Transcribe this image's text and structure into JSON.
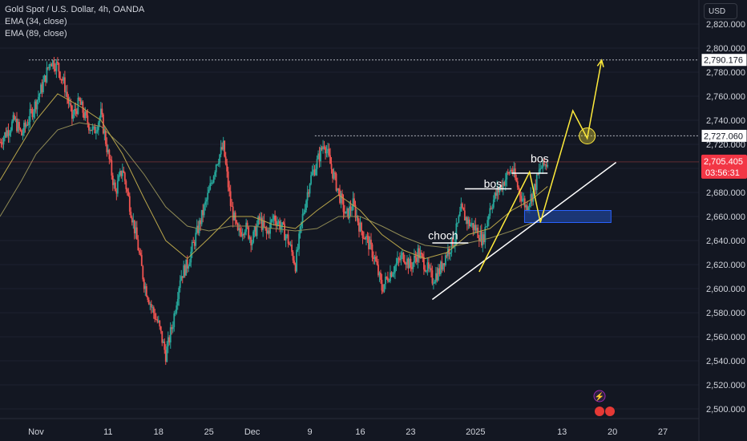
{
  "legend": {
    "symbol": "Gold Spot / U.S. Dollar, 4h, OANDA",
    "ema34": "EMA (34, close)",
    "ema89": "EMA (89, close)"
  },
  "currency_label": "USD",
  "colors": {
    "background": "#131722",
    "up": "#26a69a",
    "down": "#ef5350",
    "ema34": "#b8a54a",
    "ema89": "#8f8a55",
    "drawing": "#ffeb3b",
    "trendline": "#ffffff",
    "zone": "#1e3f8a"
  },
  "chart_data": {
    "type": "candlestick",
    "y_ticks": [
      2500,
      2520,
      2540,
      2560,
      2580,
      2600,
      2620,
      2640,
      2660,
      2680,
      2700,
      2720,
      2740,
      2760,
      2780,
      2800,
      2820
    ],
    "y_tick_labels": [
      "2,500.000",
      "2,520.000",
      "2,540.000",
      "2,560.000",
      "2,580.000",
      "2,600.000",
      "2,620.000",
      "2,640.000",
      "2,660.000",
      "2,680.000",
      "2,700.000",
      "2,720.000",
      "2,740.000",
      "2,760.000",
      "2,780.000",
      "2,800.000",
      "2,820.000"
    ],
    "x_tick_labels": [
      "Nov",
      "11",
      "18",
      "25",
      "Dec",
      "9",
      "16",
      "23",
      "2025",
      "13",
      "20",
      "27"
    ],
    "x_tick_days": [
      0,
      10,
      17,
      24,
      30,
      38,
      45,
      52,
      61,
      73,
      80,
      87
    ],
    "ylim": [
      2492,
      2840
    ],
    "xlim_days": [
      -5,
      92
    ],
    "price_path": [
      [
        -5,
        2722
      ],
      [
        -3,
        2740
      ],
      [
        -2,
        2728
      ],
      [
        0,
        2755
      ],
      [
        1,
        2770
      ],
      [
        2,
        2790
      ],
      [
        3,
        2785
      ],
      [
        4,
        2768
      ],
      [
        5,
        2742
      ],
      [
        6,
        2755
      ],
      [
        7,
        2740
      ],
      [
        8,
        2730
      ],
      [
        9,
        2745
      ],
      [
        10,
        2712
      ],
      [
        11,
        2680
      ],
      [
        12,
        2700
      ],
      [
        13,
        2670
      ],
      [
        14,
        2640
      ],
      [
        15,
        2605
      ],
      [
        16,
        2585
      ],
      [
        17,
        2570
      ],
      [
        18,
        2545
      ],
      [
        19,
        2572
      ],
      [
        20,
        2610
      ],
      [
        21,
        2620
      ],
      [
        22,
        2640
      ],
      [
        23,
        2660
      ],
      [
        24,
        2680
      ],
      [
        25,
        2705
      ],
      [
        26,
        2718
      ],
      [
        27,
        2670
      ],
      [
        28,
        2645
      ],
      [
        29,
        2652
      ],
      [
        30,
        2640
      ],
      [
        31,
        2658
      ],
      [
        32,
        2645
      ],
      [
        33,
        2660
      ],
      [
        34,
        2652
      ],
      [
        35,
        2640
      ],
      [
        36,
        2620
      ],
      [
        37,
        2660
      ],
      [
        38,
        2690
      ],
      [
        39,
        2705
      ],
      [
        40,
        2722
      ],
      [
        41,
        2700
      ],
      [
        42,
        2680
      ],
      [
        43,
        2660
      ],
      [
        44,
        2670
      ],
      [
        45,
        2650
      ],
      [
        46,
        2640
      ],
      [
        47,
        2625
      ],
      [
        48,
        2600
      ],
      [
        49,
        2612
      ],
      [
        50,
        2620
      ],
      [
        51,
        2628
      ],
      [
        52,
        2618
      ],
      [
        53,
        2630
      ],
      [
        54,
        2620
      ],
      [
        55,
        2608
      ],
      [
        56,
        2615
      ],
      [
        57,
        2630
      ],
      [
        58,
        2640
      ],
      [
        59,
        2665
      ],
      [
        60,
        2655
      ],
      [
        61,
        2650
      ],
      [
        62,
        2640
      ],
      [
        63,
        2668
      ],
      [
        64,
        2680
      ],
      [
        65,
        2690
      ],
      [
        66,
        2700
      ],
      [
        67,
        2682
      ],
      [
        68,
        2668
      ],
      [
        69,
        2680
      ],
      [
        70,
        2700
      ],
      [
        71,
        2705
      ]
    ],
    "ema34_path": [
      [
        -5,
        2690
      ],
      [
        -2,
        2720
      ],
      [
        0,
        2740
      ],
      [
        3,
        2762
      ],
      [
        6,
        2752
      ],
      [
        9,
        2740
      ],
      [
        12,
        2712
      ],
      [
        15,
        2675
      ],
      [
        18,
        2640
      ],
      [
        21,
        2625
      ],
      [
        24,
        2642
      ],
      [
        27,
        2660
      ],
      [
        30,
        2660
      ],
      [
        33,
        2653
      ],
      [
        36,
        2650
      ],
      [
        39,
        2665
      ],
      [
        42,
        2678
      ],
      [
        45,
        2665
      ],
      [
        48,
        2645
      ],
      [
        51,
        2632
      ],
      [
        54,
        2625
      ],
      [
        57,
        2630
      ],
      [
        60,
        2645
      ],
      [
        63,
        2650
      ],
      [
        66,
        2665
      ],
      [
        69,
        2675
      ],
      [
        71,
        2685
      ]
    ],
    "ema89_path": [
      [
        -5,
        2660
      ],
      [
        -2,
        2690
      ],
      [
        0,
        2712
      ],
      [
        3,
        2732
      ],
      [
        6,
        2738
      ],
      [
        9,
        2735
      ],
      [
        12,
        2718
      ],
      [
        15,
        2695
      ],
      [
        18,
        2668
      ],
      [
        21,
        2652
      ],
      [
        24,
        2648
      ],
      [
        27,
        2652
      ],
      [
        30,
        2652
      ],
      [
        33,
        2650
      ],
      [
        36,
        2648
      ],
      [
        39,
        2650
      ],
      [
        42,
        2660
      ],
      [
        45,
        2660
      ],
      [
        48,
        2652
      ],
      [
        51,
        2643
      ],
      [
        54,
        2636
      ],
      [
        57,
        2634
      ],
      [
        60,
        2638
      ],
      [
        63,
        2642
      ],
      [
        66,
        2648
      ],
      [
        69,
        2655
      ],
      [
        71,
        2662
      ]
    ],
    "horizontal_levels": [
      {
        "price": 2790.176,
        "label": "2,790.176",
        "from_day": -1
      },
      {
        "price": 2727.06,
        "label": "2,727.060",
        "from_day": 38.7
      }
    ],
    "current_price": {
      "price": 2705.405,
      "label": "2,705.405",
      "countdown": "03:56:31"
    },
    "annotations": [
      {
        "text": "choch",
        "day": 56.5,
        "price": 2641
      },
      {
        "text": "bos",
        "day": 63.4,
        "price": 2684
      },
      {
        "text": "bos",
        "day": 69.9,
        "price": 2705
      }
    ],
    "structure_lines": [
      {
        "from": [
          55,
          2638
        ],
        "to": [
          60,
          2638
        ]
      },
      {
        "from": [
          59.5,
          2683
        ],
        "to": [
          66,
          2683
        ]
      },
      {
        "from": [
          66,
          2696
        ],
        "to": [
          71,
          2696
        ]
      }
    ],
    "trendline": {
      "from": [
        55,
        2591
      ],
      "to": [
        80.5,
        2705
      ]
    },
    "demand_zone": {
      "from_day": 67.8,
      "to_day": 79.8,
      "top": 2665,
      "bottom": 2655
    },
    "projection_path": [
      [
        61.5,
        2614
      ],
      [
        68.5,
        2697
      ],
      [
        70,
        2655
      ],
      [
        74.5,
        2748
      ],
      [
        76.5,
        2725
      ],
      [
        78.5,
        2790
      ]
    ],
    "target_circle": {
      "day": 76.5,
      "price": 2727
    }
  }
}
